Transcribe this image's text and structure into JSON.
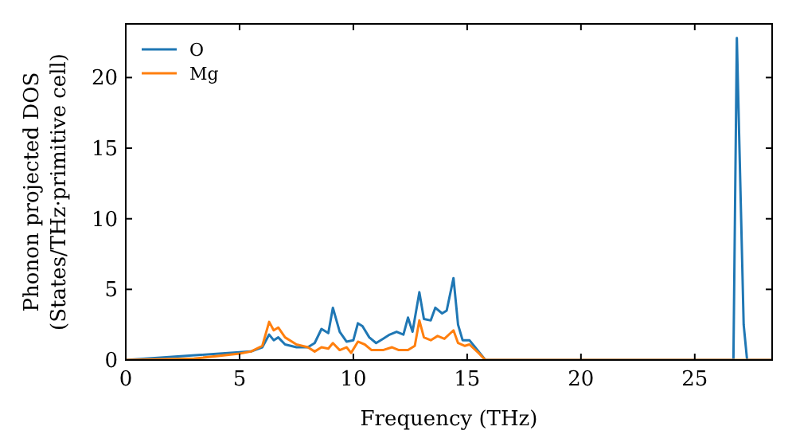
{
  "chart_data": {
    "type": "line",
    "xlabel": "Frequency (THz)",
    "ylabel": "Phonon projected DOS\n(States/THz·primitive cell)",
    "xlim": [
      0,
      28.4
    ],
    "ylim": [
      0,
      23.8
    ],
    "xticks": [
      0,
      5,
      10,
      15,
      20,
      25
    ],
    "yticks": [
      0,
      5,
      10,
      15,
      20
    ],
    "legend": "top left",
    "grid": false,
    "marker": "none",
    "line_style": "solid",
    "series": [
      {
        "name": "O",
        "color": "#1f77b4",
        "x": [
          0,
          5.5,
          6,
          6.3,
          6.5,
          6.7,
          7,
          7.5,
          8,
          8.3,
          8.6,
          8.9,
          9.1,
          9.4,
          9.7,
          10,
          10.2,
          10.4,
          10.7,
          11,
          11.3,
          11.6,
          11.9,
          12.2,
          12.4,
          12.6,
          12.9,
          13.1,
          13.4,
          13.6,
          13.9,
          14.1,
          14.4,
          14.6,
          14.8,
          15.1,
          15.4,
          15.8,
          26.7,
          26.85,
          27.15,
          27.3,
          28.4
        ],
        "values": [
          0,
          0.6,
          0.9,
          1.8,
          1.4,
          1.6,
          1.1,
          0.9,
          0.9,
          1.2,
          2.2,
          1.9,
          3.7,
          2,
          1.3,
          1.4,
          2.6,
          2.4,
          1.6,
          1.2,
          1.5,
          1.8,
          2,
          1.8,
          3,
          2,
          4.8,
          2.9,
          2.8,
          3.7,
          3.3,
          3.5,
          5.8,
          2.5,
          1.4,
          1.4,
          0.8,
          0,
          0,
          22.8,
          2.5,
          0,
          0
        ]
      },
      {
        "name": "Mg",
        "color": "#ff7f0e",
        "x": [
          0,
          3,
          5,
          5.5,
          6,
          6.3,
          6.5,
          6.7,
          7,
          7.5,
          8,
          8.3,
          8.6,
          8.9,
          9.1,
          9.4,
          9.7,
          9.9,
          10.2,
          10.5,
          10.8,
          11.3,
          11.7,
          12,
          12.4,
          12.7,
          12.9,
          13.1,
          13.4,
          13.7,
          14,
          14.4,
          14.6,
          14.9,
          15.1,
          15.5,
          15.8,
          28.4
        ],
        "values": [
          0,
          0.1,
          0.45,
          0.6,
          1,
          2.7,
          2.1,
          2.3,
          1.6,
          1.1,
          0.9,
          0.6,
          0.9,
          0.8,
          1.2,
          0.7,
          0.9,
          0.5,
          1.3,
          1.1,
          0.7,
          0.7,
          0.9,
          0.7,
          0.7,
          1,
          2.8,
          1.6,
          1.4,
          1.7,
          1.5,
          2.1,
          1.2,
          1,
          1.1,
          0.5,
          0,
          0
        ]
      }
    ]
  }
}
